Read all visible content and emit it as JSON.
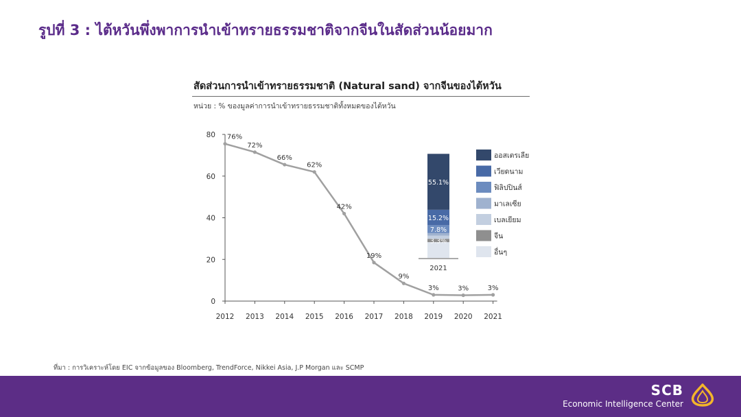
{
  "slide": {
    "title": "รูปที่ 3 : ไต้หวันพึ่งพาการนำเข้าทรายธรรมชาติจากจีนในสัดส่วนน้อยมาก"
  },
  "chart_header": {
    "title": "สัดส่วนการนำเข้าทรายธรรมชาติ (Natural sand) จากจีนของไต้หวัน",
    "unit": "หน่วย : % ของมูลค่าการนำเข้าทรายธรรมชาติทั้งหมดของไต้หวัน"
  },
  "chart_data": [
    {
      "type": "line",
      "title": "",
      "x": [
        "2012",
        "2013",
        "2014",
        "2015",
        "2016",
        "2017",
        "2018",
        "2019",
        "2020",
        "2021"
      ],
      "values": [
        75.5,
        71.5,
        65.5,
        62,
        42,
        18.5,
        8.5,
        3,
        2.8,
        3
      ],
      "data_labels": [
        "76%",
        "72%",
        "66%",
        "62%",
        "42%",
        "19%",
        "9%",
        "3%",
        "3%",
        "3%"
      ],
      "ylim": [
        0,
        80
      ],
      "yticks": [
        "0",
        "20",
        "40",
        "60",
        "80"
      ],
      "grid": false,
      "color": "#a0a0a0"
    },
    {
      "type": "bar",
      "stacked": true,
      "categories": [
        "2021"
      ],
      "series": [
        {
          "name": "อื่นๆ",
          "value": 15.5,
          "label": "",
          "color": "#dfe5ee"
        },
        {
          "name": "จีน",
          "value": 3.3,
          "label": "3.3%",
          "color": "#8f8f8f"
        },
        {
          "name": "เบลเยียม",
          "value": 3.1,
          "label": "",
          "color": "#c3cfe0"
        },
        {
          "name": "มาเลเซีย",
          "value": 2.5,
          "label": "",
          "color": "#9fb2cf"
        },
        {
          "name": "ฟิลิปปินส์",
          "value": 7.8,
          "label": "7.8%",
          "color": "#6c8cbf"
        },
        {
          "name": "เวียดนาม",
          "value": 15.2,
          "label": "15.2%",
          "color": "#486aa6"
        },
        {
          "name": "ออสเตรเลีย",
          "value": 55.1,
          "label": "55.1%",
          "color": "#33486b"
        }
      ],
      "legend": [
        {
          "name": "ออสเตรเลีย",
          "color": "#33486b"
        },
        {
          "name": "เวียดนาม",
          "color": "#486aa6"
        },
        {
          "name": "ฟิลิปปินส์",
          "color": "#6c8cbf"
        },
        {
          "name": "มาเลเซีย",
          "color": "#9fb2cf"
        },
        {
          "name": "เบลเยียม",
          "color": "#c3cfe0"
        },
        {
          "name": "จีน",
          "color": "#8f8f8f"
        },
        {
          "name": "อื่นๆ",
          "color": "#dfe5ee"
        }
      ],
      "legend_position": "right"
    }
  ],
  "source": "ที่มา : การวิเคราะห์โดย EIC จากข้อมูลของ Bloomberg, TrendForce, Nikkei Asia, J.P Morgan และ SCMP",
  "footer": {
    "brand": "SCB",
    "subtitle": "Economic Intelligence Center"
  }
}
